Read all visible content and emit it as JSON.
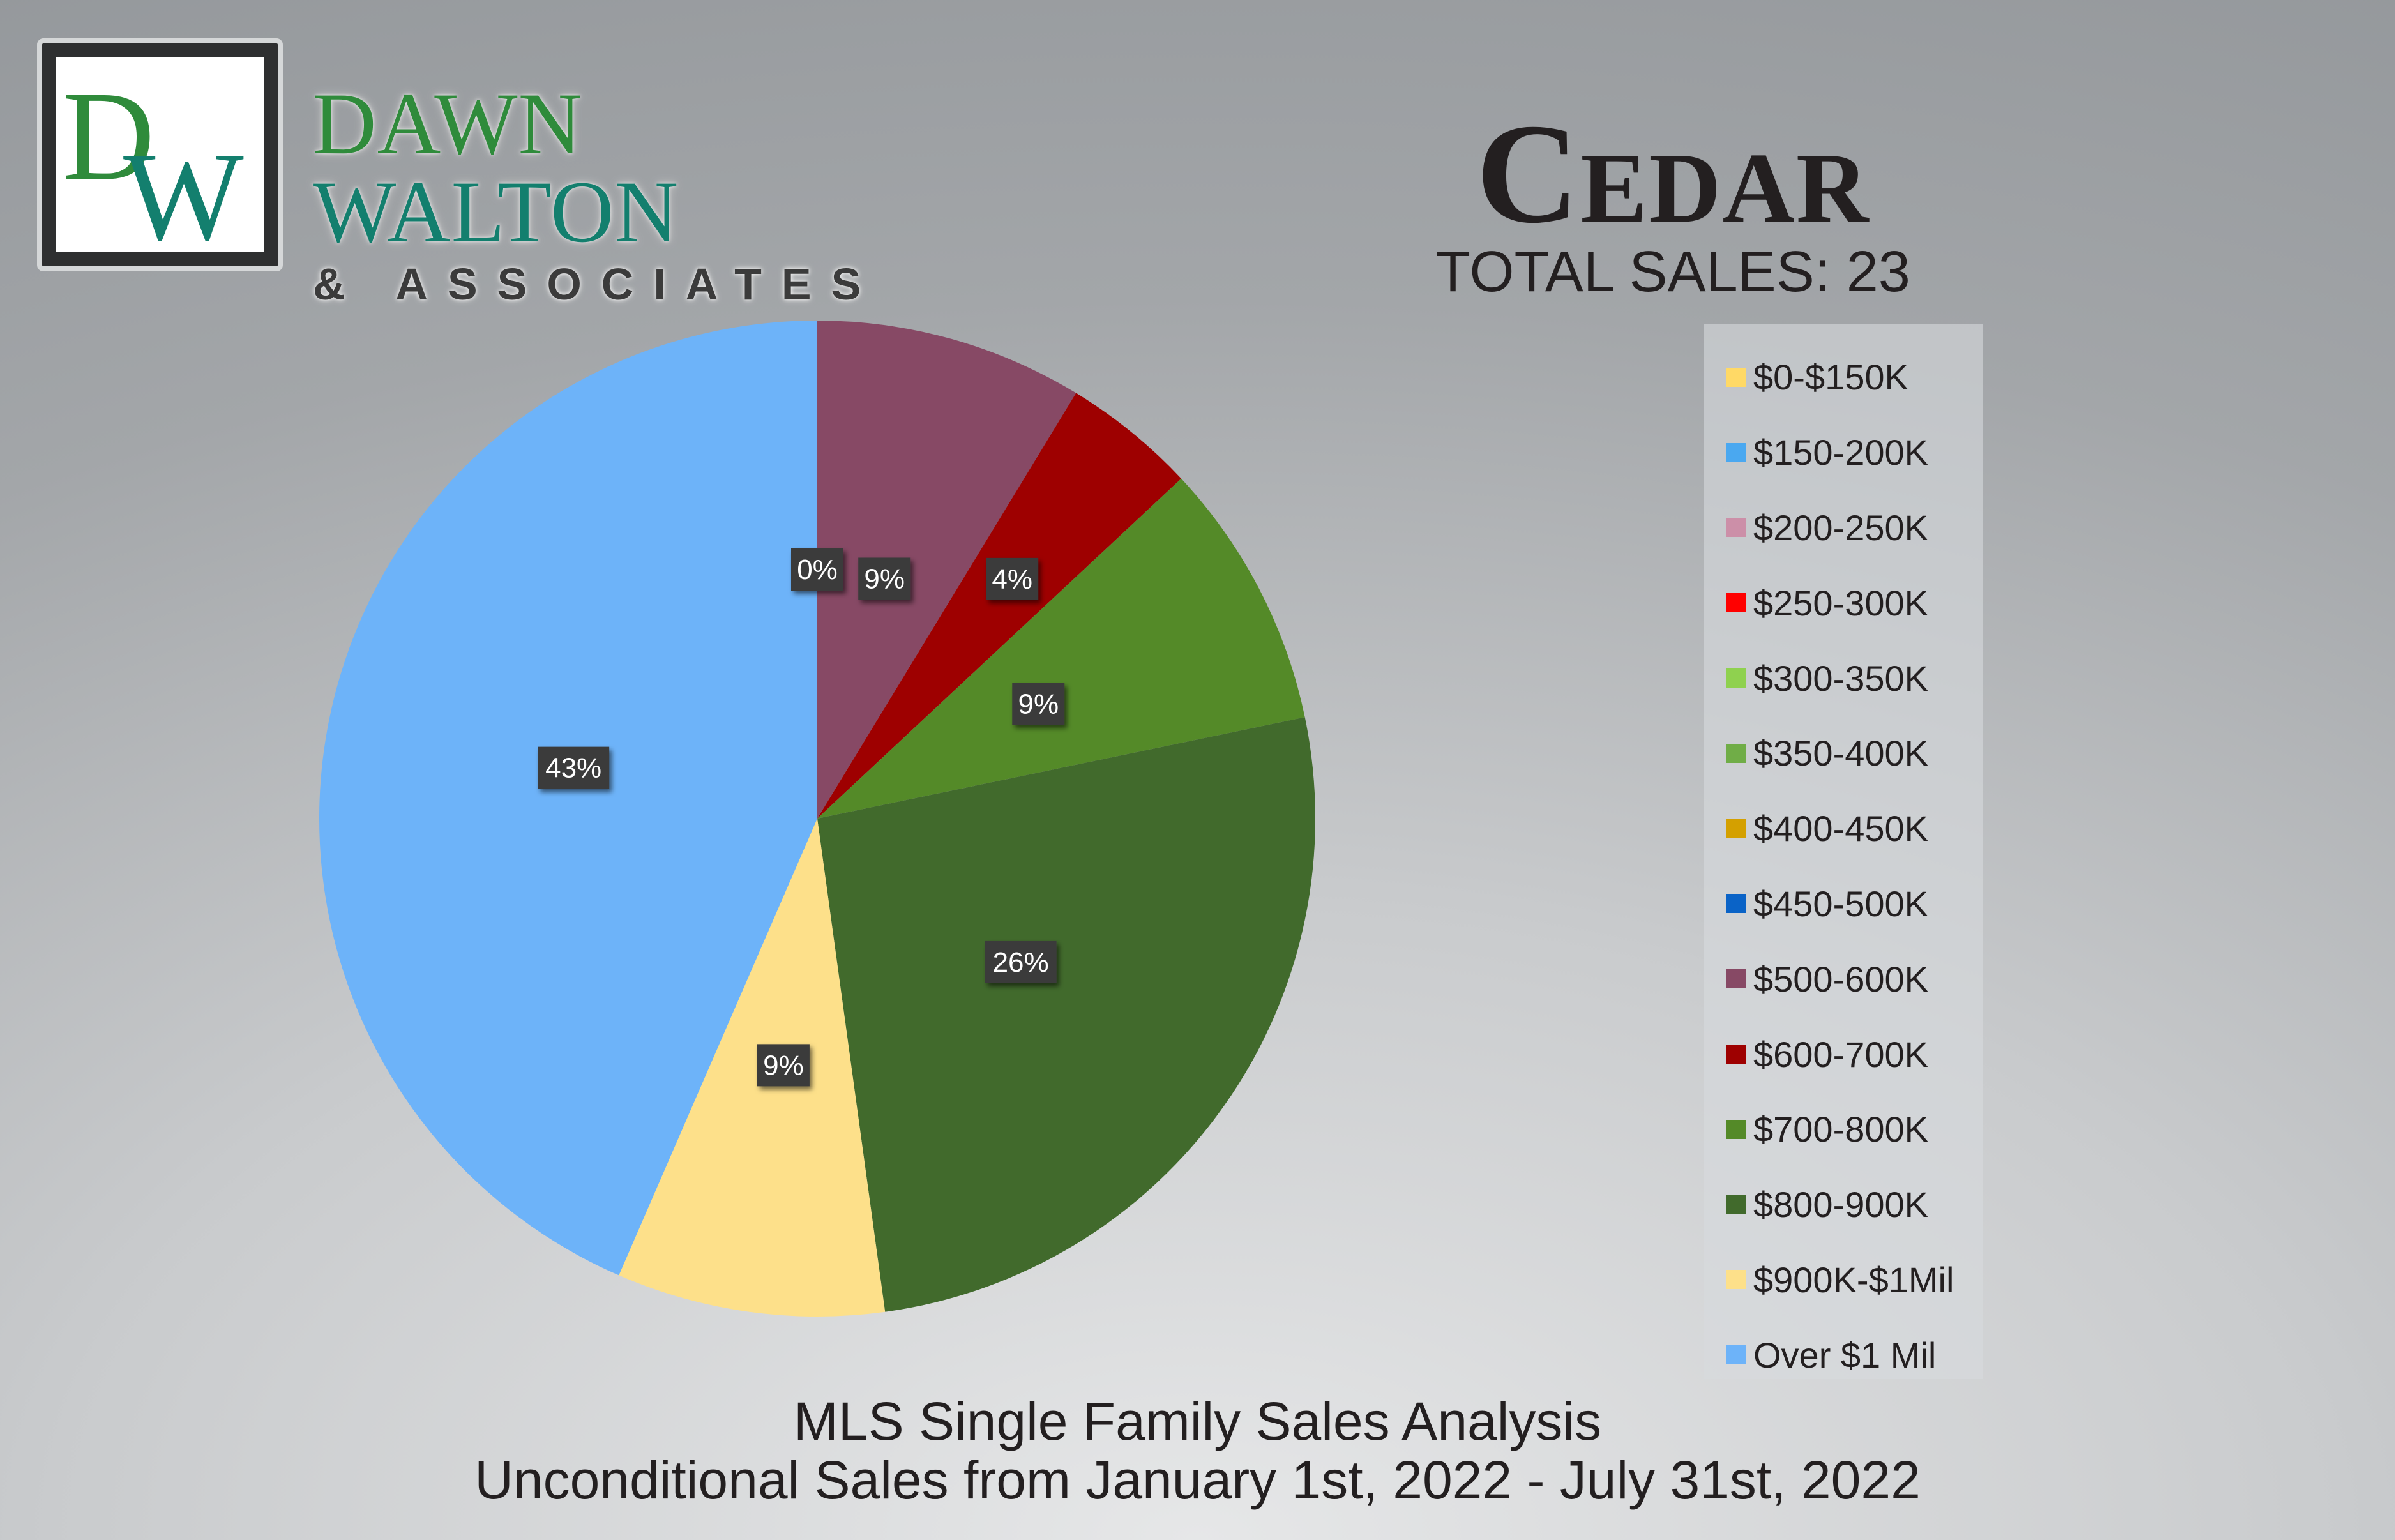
{
  "brand": {
    "monogram": "DW",
    "name_first": "DAWN",
    "name_second": "WALTON",
    "tagline": "& ASSOCIATES"
  },
  "header": {
    "title": "Cedar",
    "total_sales": "TOTAL SALES: 23"
  },
  "footer": {
    "line1": "MLS Single Family Sales Analysis",
    "line2": "Unconditional Sales from January 1st, 2022 - July 31st, 2022"
  },
  "chart_data": {
    "type": "pie",
    "title": "Cedar",
    "categories": [
      "$0-$150K",
      "$150-200K",
      "$200-250K",
      "$250-300K",
      "$300-350K",
      "$350-400K",
      "$400-450K",
      "$450-500K",
      "$500-600K",
      "$600-700K",
      "$700-800K",
      "$800-900K",
      "$900K-$1Mil",
      "Over $1 Mil"
    ],
    "values": [
      0,
      0,
      0,
      0,
      0,
      0,
      0,
      0,
      2,
      1,
      2,
      6,
      2,
      10
    ],
    "percent_labels": [
      "0%",
      "0%",
      "0%",
      "0%",
      "0%",
      "0%",
      "0%",
      "0%",
      "9%",
      "4%",
      "9%",
      "26%",
      "9%",
      "43%"
    ],
    "colors": [
      "#ffd966",
      "#4aa8f0",
      "#cc8fa8",
      "#ff0000",
      "#8fd14f",
      "#70ad47",
      "#d4a000",
      "#0a63c7",
      "#874965",
      "#9e0000",
      "#548a28",
      "#416a2c",
      "#fde08a",
      "#6db3f9"
    ],
    "legend_position": "right",
    "start_angle": "12 o'clock, clockwise"
  }
}
